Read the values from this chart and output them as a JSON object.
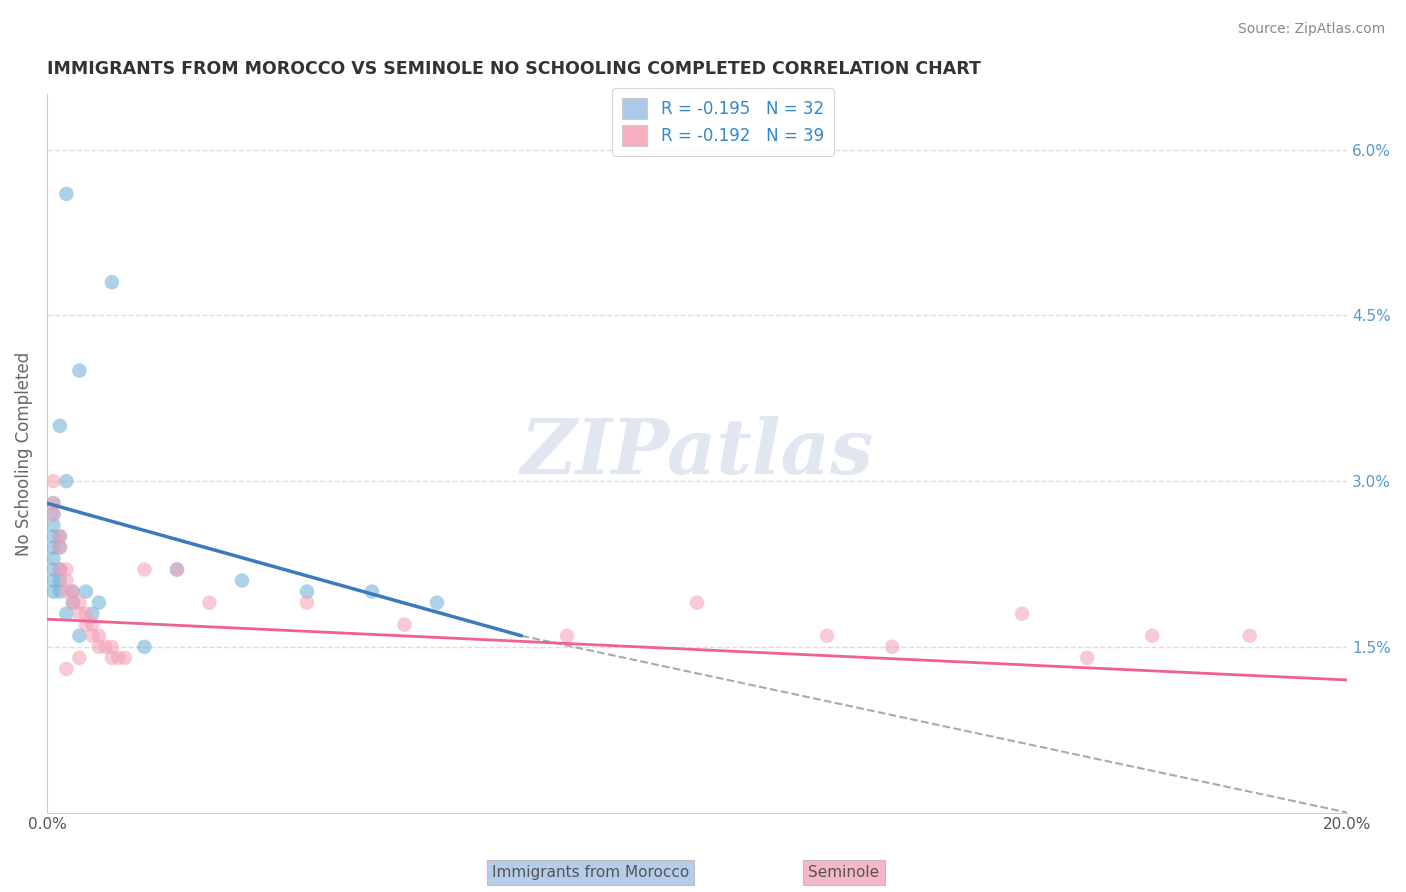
{
  "title": "IMMIGRANTS FROM MOROCCO VS SEMINOLE NO SCHOOLING COMPLETED CORRELATION CHART",
  "source": "Source: ZipAtlas.com",
  "ylabel": "No Schooling Completed",
  "xlim": [
    0.0,
    0.2
  ],
  "ylim": [
    0.0,
    0.065
  ],
  "xticks": [
    0.0,
    0.05,
    0.1,
    0.15,
    0.2
  ],
  "xtick_labels": [
    "0.0%",
    "",
    "",
    "",
    "20.0%"
  ],
  "yticks_right": [
    0.0,
    0.015,
    0.03,
    0.045,
    0.06
  ],
  "ytick_labels_right": [
    "",
    "1.5%",
    "3.0%",
    "4.5%",
    "6.0%"
  ],
  "legend_label1": "R = -0.195   N = 32",
  "legend_label2": "R = -0.192   N = 39",
  "legend_color1": "#adc8e8",
  "legend_color2": "#f5afc0",
  "watermark": "ZIPatlas",
  "watermark_color": "#ccd8e8",
  "blue_color": "#6aaed6",
  "pink_color": "#f4a0b5",
  "blue_line_color": "#3a7abf",
  "pink_line_color": "#f06090",
  "dashed_line_color": "#aaaaaa",
  "blue_line_x0": 0.0,
  "blue_line_y0": 0.028,
  "blue_line_x1": 0.073,
  "blue_line_y1": 0.016,
  "pink_line_x0": 0.0,
  "pink_line_y0": 0.0175,
  "pink_line_x1": 0.2,
  "pink_line_y1": 0.012,
  "dash_line_x0": 0.073,
  "dash_line_y0": 0.016,
  "dash_line_x1": 0.2,
  "dash_line_y1": 0.0,
  "blue_scatter": [
    [
      0.003,
      0.056
    ],
    [
      0.01,
      0.048
    ],
    [
      0.005,
      0.04
    ],
    [
      0.002,
      0.035
    ],
    [
      0.003,
      0.03
    ],
    [
      0.001,
      0.028
    ],
    [
      0.001,
      0.027
    ],
    [
      0.001,
      0.026
    ],
    [
      0.002,
      0.025
    ],
    [
      0.001,
      0.025
    ],
    [
      0.001,
      0.024
    ],
    [
      0.002,
      0.024
    ],
    [
      0.001,
      0.023
    ],
    [
      0.002,
      0.022
    ],
    [
      0.001,
      0.022
    ],
    [
      0.001,
      0.021
    ],
    [
      0.002,
      0.021
    ],
    [
      0.004,
      0.02
    ],
    [
      0.002,
      0.02
    ],
    [
      0.001,
      0.02
    ],
    [
      0.006,
      0.02
    ],
    [
      0.004,
      0.019
    ],
    [
      0.008,
      0.019
    ],
    [
      0.003,
      0.018
    ],
    [
      0.007,
      0.018
    ],
    [
      0.005,
      0.016
    ],
    [
      0.02,
      0.022
    ],
    [
      0.03,
      0.021
    ],
    [
      0.04,
      0.02
    ],
    [
      0.05,
      0.02
    ],
    [
      0.06,
      0.019
    ],
    [
      0.015,
      0.015
    ]
  ],
  "pink_scatter": [
    [
      0.001,
      0.03
    ],
    [
      0.001,
      0.028
    ],
    [
      0.001,
      0.027
    ],
    [
      0.002,
      0.025
    ],
    [
      0.002,
      0.024
    ],
    [
      0.002,
      0.022
    ],
    [
      0.003,
      0.022
    ],
    [
      0.003,
      0.021
    ],
    [
      0.003,
      0.02
    ],
    [
      0.004,
      0.02
    ],
    [
      0.004,
      0.019
    ],
    [
      0.005,
      0.019
    ],
    [
      0.005,
      0.018
    ],
    [
      0.006,
      0.018
    ],
    [
      0.006,
      0.017
    ],
    [
      0.007,
      0.017
    ],
    [
      0.007,
      0.016
    ],
    [
      0.008,
      0.016
    ],
    [
      0.008,
      0.015
    ],
    [
      0.009,
      0.015
    ],
    [
      0.01,
      0.015
    ],
    [
      0.01,
      0.014
    ],
    [
      0.011,
      0.014
    ],
    [
      0.012,
      0.014
    ],
    [
      0.015,
      0.022
    ],
    [
      0.02,
      0.022
    ],
    [
      0.025,
      0.019
    ],
    [
      0.04,
      0.019
    ],
    [
      0.055,
      0.017
    ],
    [
      0.08,
      0.016
    ],
    [
      0.1,
      0.019
    ],
    [
      0.12,
      0.016
    ],
    [
      0.13,
      0.015
    ],
    [
      0.15,
      0.018
    ],
    [
      0.16,
      0.014
    ],
    [
      0.17,
      0.016
    ],
    [
      0.185,
      0.016
    ],
    [
      0.005,
      0.014
    ],
    [
      0.003,
      0.013
    ]
  ]
}
